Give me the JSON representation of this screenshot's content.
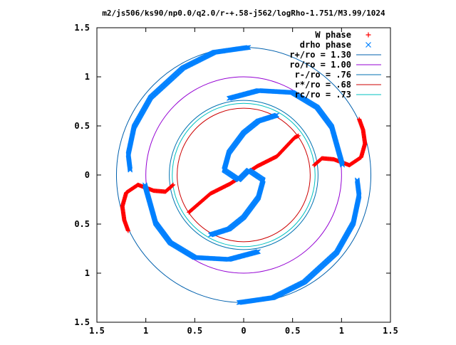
{
  "chart_data": {
    "type": "scatter",
    "title": "m2/js506/ks90/np0.0/q2.0/r-+.58-j562/logRho-1.751/M3.99/1024",
    "xlabel": "",
    "ylabel": "",
    "xlim": [
      -1.5,
      1.5
    ],
    "ylim": [
      -1.5,
      1.5
    ],
    "x_tick_labels": [
      "1.5",
      "1",
      "0.5",
      "0",
      "0.5",
      "1",
      "1.5"
    ],
    "y_tick_labels": [
      "1.5",
      "1",
      "0.5",
      "0",
      "0.5",
      "1",
      "1.5"
    ],
    "grid": false,
    "legend_position": "top-right",
    "series": [
      {
        "name": "W phase",
        "marker": "plus",
        "color": "#ff0000",
        "arms": [
          {
            "x": [
              -0.56,
              -0.34,
              -0.14,
              0.0,
              0.14,
              0.34,
              0.52,
              0.56
            ],
            "y": [
              -0.38,
              -0.19,
              -0.09,
              0.0,
              0.09,
              0.19,
              0.38,
              0.4
            ]
          },
          {
            "x": [
              -0.72,
              -0.8,
              -0.92,
              -1.08,
              -1.2,
              -1.24,
              -1.22,
              -1.18
            ],
            "y": [
              -0.1,
              -0.17,
              -0.16,
              -0.1,
              -0.18,
              -0.32,
              -0.46,
              -0.57
            ]
          },
          {
            "x": [
              0.72,
              0.8,
              0.92,
              1.08,
              1.2,
              1.24,
              1.22,
              1.18
            ],
            "y": [
              0.1,
              0.17,
              0.16,
              0.1,
              0.18,
              0.32,
              0.46,
              0.57
            ]
          }
        ]
      },
      {
        "name": "drho phase",
        "marker": "cross",
        "color": "#0080ff",
        "arms": [
          {
            "x": [
              0.34,
              0.15,
              0.0,
              -0.15,
              -0.2,
              -0.05,
              0.0,
              0.05,
              0.2,
              0.15,
              0.0,
              -0.15,
              -0.34
            ],
            "y": [
              0.61,
              0.55,
              0.43,
              0.23,
              0.05,
              -0.05,
              0.0,
              0.05,
              -0.05,
              -0.23,
              -0.43,
              -0.55,
              -0.61
            ]
          },
          {
            "x": [
              0.05,
              -0.3,
              -0.62,
              -0.95,
              -1.12,
              -1.18,
              -1.16
            ],
            "y": [
              1.3,
              1.25,
              1.09,
              0.79,
              0.49,
              0.21,
              0.05
            ]
          },
          {
            "x": [
              -0.05,
              0.3,
              0.62,
              0.95,
              1.12,
              1.18,
              1.16
            ],
            "y": [
              -1.3,
              -1.25,
              -1.09,
              -0.79,
              -0.49,
              -0.21,
              -0.05
            ]
          },
          {
            "x": [
              -0.15,
              0.15,
              0.5,
              0.75,
              0.9,
              1.01
            ],
            "y": [
              0.78,
              0.86,
              0.84,
              0.69,
              0.49,
              0.1
            ]
          },
          {
            "x": [
              0.15,
              -0.15,
              -0.5,
              -0.75,
              -0.9,
              -1.01
            ],
            "y": [
              -0.78,
              -0.86,
              -0.84,
              -0.69,
              -0.49,
              -0.1
            ]
          }
        ]
      }
    ],
    "circles": [
      {
        "label": "r+/ro = 1.30",
        "radius": 1.3,
        "color": "#0060ad"
      },
      {
        "label": "ro/ro = 1.00",
        "radius": 1.0,
        "color": "#9400d3"
      },
      {
        "label": "r-/ro = .76",
        "radius": 0.76,
        "color": "#0072b2"
      },
      {
        "label": "r*/ro = .68",
        "radius": 0.68,
        "color": "#cc0000"
      },
      {
        "label": "rc/ro = .73",
        "radius": 0.73,
        "color": "#00c0c0"
      }
    ]
  }
}
